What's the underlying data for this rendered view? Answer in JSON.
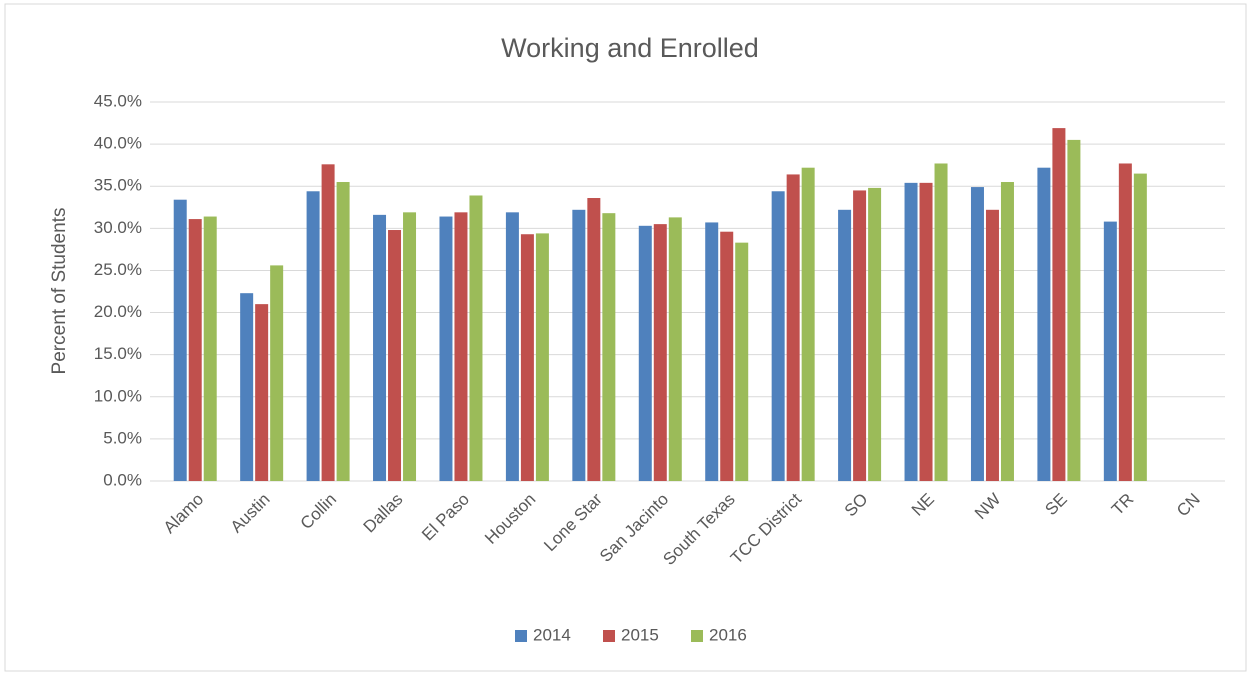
{
  "chart_data": {
    "type": "bar",
    "title": "Working and Enrolled",
    "y_label": "Percent of Students",
    "categories": [
      "Alamo",
      "Austin",
      "Collin",
      "Dallas",
      "El Paso",
      "Houston",
      "Lone Star",
      "San Jacinto",
      "South Texas",
      "TCC District",
      "SO",
      "NE",
      "NW",
      "SE",
      "TR",
      "CN"
    ],
    "series": [
      {
        "name": "2014",
        "color": "#4f81bd",
        "values": [
          33.4,
          22.3,
          34.4,
          31.6,
          31.4,
          31.9,
          32.2,
          30.3,
          30.7,
          34.4,
          32.2,
          35.4,
          34.9,
          37.2,
          30.8,
          null
        ]
      },
      {
        "name": "2015",
        "color": "#c0504d",
        "values": [
          31.1,
          21.0,
          37.6,
          29.8,
          31.9,
          29.3,
          33.6,
          30.5,
          29.6,
          36.4,
          34.5,
          35.4,
          32.2,
          41.9,
          37.7,
          null
        ]
      },
      {
        "name": "2016",
        "color": "#9bbb59",
        "values": [
          31.4,
          25.6,
          35.5,
          31.9,
          33.9,
          29.4,
          31.8,
          31.3,
          28.3,
          37.2,
          34.8,
          37.7,
          35.5,
          40.5,
          36.5,
          null
        ]
      }
    ],
    "ylim": [
      0,
      45
    ],
    "yticks": [
      {
        "value": 0,
        "label": "0.0%"
      },
      {
        "value": 5,
        "label": "5.0%"
      },
      {
        "value": 10,
        "label": "10.0%"
      },
      {
        "value": 15,
        "label": "15.0%"
      },
      {
        "value": 20,
        "label": "20.0%"
      },
      {
        "value": 25,
        "label": "25.0%"
      },
      {
        "value": 30,
        "label": "30.0%"
      },
      {
        "value": 35,
        "label": "35.0%"
      },
      {
        "value": 40,
        "label": "40.0%"
      },
      {
        "value": 45,
        "label": "45.0%"
      }
    ],
    "grid": true,
    "legend": "bottom"
  }
}
